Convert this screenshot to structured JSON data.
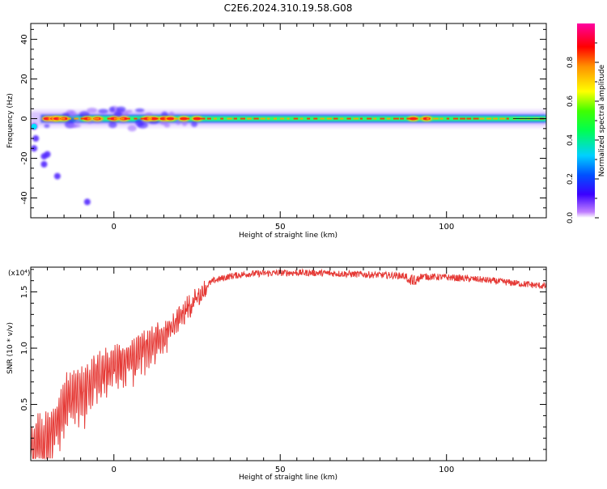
{
  "title": "C2E6.2024.310.19.58.G08",
  "chart_data": [
    {
      "type": "heatmap",
      "title": "C2E6.2024.310.19.58.G08",
      "xlabel": "Height of straight line (km)",
      "ylabel": "Frequency (Hz)",
      "xlim": [
        -25,
        130
      ],
      "ylim": [
        -50,
        48
      ],
      "x_ticks": [
        0,
        50,
        100
      ],
      "y_ticks": [
        -40,
        -20,
        0,
        20,
        40
      ],
      "colorbar": {
        "label": "Normalized spectral amplitude",
        "range": [
          0,
          1
        ],
        "ticks": [
          "0.0",
          "0.2",
          "0.4",
          "0.6",
          "0.8"
        ],
        "colormap": "rainbow (magenta-blue-cyan-green-yellow-red-magenta)"
      },
      "ridge": {
        "frequency_hz": 0,
        "x_range": [
          -25,
          130
        ]
      },
      "peak_x": [
        -20,
        -18,
        -17,
        -15,
        -8,
        -5,
        0,
        3,
        10,
        12,
        15,
        17,
        21,
        25,
        90,
        94
      ],
      "low_cluster": [
        {
          "x": -24,
          "y": -4
        },
        {
          "x": -23.5,
          "y": -10
        },
        {
          "x": -24,
          "y": -15
        },
        {
          "x": -21,
          "y": -19
        },
        {
          "x": -20,
          "y": -18
        },
        {
          "x": -21,
          "y": -23
        },
        {
          "x": -17,
          "y": -29
        },
        {
          "x": -8,
          "y": -42
        }
      ]
    },
    {
      "type": "line",
      "xlabel": "Height of straight line (km)",
      "ylabel": "SNR (10 * v/v)",
      "y_multiplier": "(x10⁴)",
      "xlim": [
        -25,
        130
      ],
      "ylim": [
        0,
        1.72
      ],
      "x_ticks": [
        0,
        50,
        100
      ],
      "y_ticks": [
        "0.5",
        "1.0",
        "1.5"
      ],
      "color": "#e53935",
      "envelope": [
        {
          "x": -25,
          "y": 0.35
        },
        {
          "x": -20,
          "y": 0.42
        },
        {
          "x": -17,
          "y": 0.55
        },
        {
          "x": -14,
          "y": 0.75
        },
        {
          "x": -10,
          "y": 0.82
        },
        {
          "x": -5,
          "y": 0.92
        },
        {
          "x": 0,
          "y": 1.0
        },
        {
          "x": 5,
          "y": 1.05
        },
        {
          "x": 10,
          "y": 1.12
        },
        {
          "x": 15,
          "y": 1.2
        },
        {
          "x": 20,
          "y": 1.35
        },
        {
          "x": 25,
          "y": 1.5
        },
        {
          "x": 30,
          "y": 1.6
        },
        {
          "x": 35,
          "y": 1.64
        },
        {
          "x": 40,
          "y": 1.66
        },
        {
          "x": 50,
          "y": 1.67
        },
        {
          "x": 60,
          "y": 1.67
        },
        {
          "x": 70,
          "y": 1.66
        },
        {
          "x": 80,
          "y": 1.65
        },
        {
          "x": 90,
          "y": 1.64
        },
        {
          "x": 100,
          "y": 1.63
        },
        {
          "x": 110,
          "y": 1.61
        },
        {
          "x": 120,
          "y": 1.58
        },
        {
          "x": 130,
          "y": 1.55
        }
      ]
    }
  ]
}
